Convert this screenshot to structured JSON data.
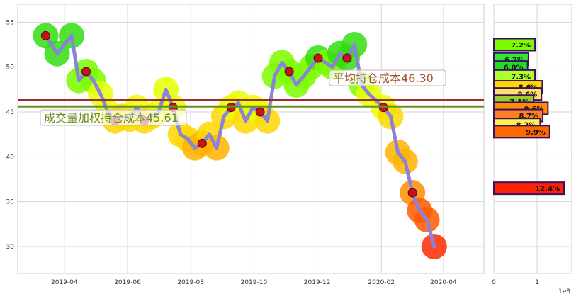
{
  "chart_data": [
    {
      "type": "line",
      "title": "",
      "xlabel": "",
      "ylabel": "",
      "ylim": [
        27,
        57
      ],
      "y_ticks": [
        30,
        35,
        40,
        45,
        50,
        55
      ],
      "x_ticks": [
        "2019-04",
        "2019-06",
        "2019-08",
        "2019-10",
        "2019-12",
        "2020-02",
        "2020-04"
      ],
      "grid": true,
      "series": [
        {
          "x": [
            "2019-03-14",
            "2019-03-25",
            "2019-04-08",
            "2019-04-15",
            "2019-04-22",
            "2019-04-29",
            "2019-05-06",
            "2019-05-13",
            "2019-05-20",
            "2019-05-27",
            "2019-06-03",
            "2019-06-10",
            "2019-06-17",
            "2019-06-24",
            "2019-07-01",
            "2019-07-08",
            "2019-07-15",
            "2019-07-22",
            "2019-07-29",
            "2019-08-05",
            "2019-08-12",
            "2019-08-19",
            "2019-08-26",
            "2019-09-02",
            "2019-09-09",
            "2019-09-16",
            "2019-09-23",
            "2019-09-30",
            "2019-10-07",
            "2019-10-14",
            "2019-10-21",
            "2019-10-28",
            "2019-11-04",
            "2019-11-11",
            "2019-11-18",
            "2019-11-25",
            "2019-12-02",
            "2019-12-09",
            "2019-12-16",
            "2019-12-23",
            "2019-12-30",
            "2020-01-06",
            "2020-01-13",
            "2020-01-20",
            "2020-02-03",
            "2020-02-10",
            "2020-02-17",
            "2020-02-24",
            "2020-03-02",
            "2020-03-09",
            "2020-03-16",
            "2020-03-23"
          ],
          "values": [
            53.5,
            51.5,
            53.5,
            48.5,
            49.5,
            48.5,
            47.0,
            45.0,
            44.0,
            44.5,
            44.2,
            45.5,
            44.0,
            44.5,
            45.0,
            47.5,
            45.5,
            42.5,
            42.0,
            41.0,
            41.5,
            42.5,
            41.0,
            44.5,
            45.5,
            46.0,
            44.0,
            45.5,
            45.0,
            44.0,
            49.0,
            50.5,
            49.5,
            48.0,
            49.0,
            50.0,
            51.0,
            50.5,
            50.0,
            51.5,
            51.0,
            52.5,
            48.0,
            47.0,
            45.5,
            44.5,
            40.5,
            39.5,
            36.0,
            34.0,
            33.0,
            30.0
          ],
          "color": "#8a84d8"
        }
      ],
      "reference_lines": [
        {
          "label": "平均持仓成本",
          "value": 46.3,
          "color": "#a52a2a"
        },
        {
          "label": "成交量加权持仓成本",
          "value": 45.61,
          "color": "#6b8e23"
        }
      ],
      "annotations": [
        {
          "text": "平均持仓成本46.30",
          "color": "#a0522d"
        },
        {
          "text": "成交量加权持仓成本45.61",
          "color": "#6b8e23"
        }
      ]
    },
    {
      "type": "bar",
      "orientation": "horizontal",
      "x_ticks": [
        0,
        1
      ],
      "x_multiplier": "1e8",
      "xlim": [
        0,
        1.8
      ],
      "bars": [
        {
          "price": 52.5,
          "value": 0.95,
          "label": "7.2%",
          "color": "#7cfc00"
        },
        {
          "price": 50.9,
          "value": 0.8,
          "label": "6.2%",
          "color": "#32e632"
        },
        {
          "price": 50.0,
          "value": 0.78,
          "label": "6.0%",
          "color": "#22dd22"
        },
        {
          "price": 49.0,
          "value": 0.95,
          "label": "7.3%",
          "color": "#adff2f"
        },
        {
          "price": 47.8,
          "value": 1.12,
          "label": "8.6%",
          "color": "#ffd700"
        },
        {
          "price": 47.0,
          "value": 1.1,
          "label": "8.6%",
          "color": "#ffe066"
        },
        {
          "price": 46.2,
          "value": 0.92,
          "label": "7.1%",
          "color": "#9acd32"
        },
        {
          "price": 45.4,
          "value": 1.25,
          "label": "9.6%",
          "color": "#ff8c00"
        },
        {
          "price": 44.6,
          "value": 1.13,
          "label": "8.7%",
          "color": "#ff7f24"
        },
        {
          "price": 43.6,
          "value": 1.07,
          "label": "8.2%",
          "color": "#fff44f"
        },
        {
          "price": 42.8,
          "value": 1.29,
          "label": "9.9%",
          "color": "#ff6a00"
        },
        {
          "price": 36.5,
          "value": 1.62,
          "label": "12.4%",
          "color": "#ff2200"
        }
      ]
    }
  ]
}
